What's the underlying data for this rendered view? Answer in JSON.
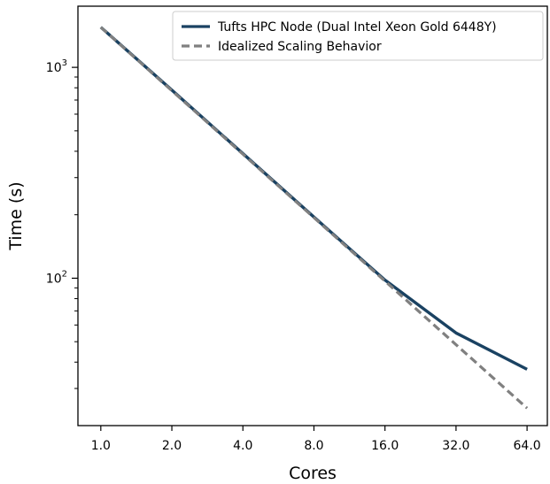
{
  "chart_data": {
    "type": "line",
    "title": "",
    "xlabel": "Cores",
    "ylabel": "Time (s)",
    "x_scale": "log2",
    "y_scale": "log10",
    "xlim": [
      0.8,
      78
    ],
    "ylim": [
      20,
      1950
    ],
    "grid": false,
    "legend_position": "top-right",
    "x_ticks": [
      1,
      2,
      4,
      8,
      16,
      32,
      64
    ],
    "x_tick_labels": [
      "1.0",
      "2.0",
      "4.0",
      "8.0",
      "16.0",
      "32.0",
      "64.0"
    ],
    "y_major_ticks": [
      {
        "value": 100,
        "base": "10",
        "exp": "2"
      },
      {
        "value": 1000,
        "base": "10",
        "exp": "3"
      }
    ],
    "y_minor_ticks": [
      30,
      40,
      50,
      60,
      70,
      80,
      90,
      200,
      300,
      400,
      500,
      600,
      700,
      800,
      900
    ],
    "series": [
      {
        "name": "Tufts HPC Node (Dual Intel Xeon Gold 6448Y)",
        "color": "#1a4262",
        "style": "solid",
        "x": [
          1,
          2,
          4,
          8,
          16,
          32,
          64
        ],
        "y": [
          1550,
          780,
          390,
          195,
          98,
          55,
          37
        ]
      },
      {
        "name": "Idealized Scaling Behavior",
        "color": "#808080",
        "style": "dashed",
        "x": [
          1,
          2,
          4,
          8,
          16,
          32,
          64
        ],
        "y": [
          1550,
          775,
          387.5,
          193.75,
          96.9,
          48.4,
          24.2
        ]
      }
    ]
  }
}
